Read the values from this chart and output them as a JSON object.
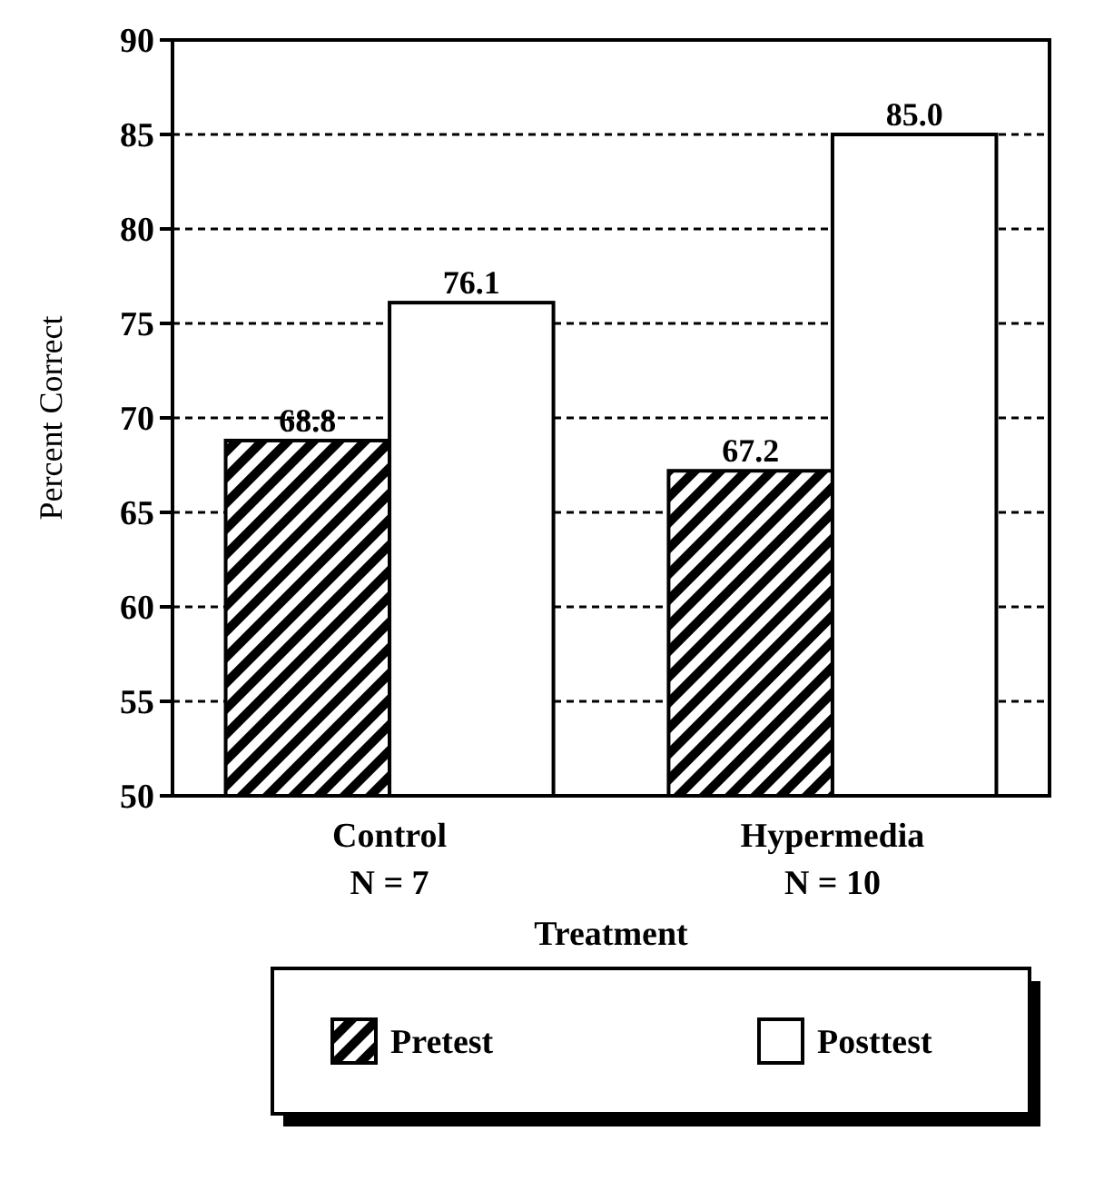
{
  "chart_data": {
    "type": "bar",
    "xlabel": "Treatment",
    "ylabel": "Percent Correct",
    "categories": [
      "Control\nN = 7",
      "Hypermedia\nN = 10"
    ],
    "series": [
      {
        "name": "Pretest",
        "color": "#000000",
        "values": [
          68.8,
          67.2
        ],
        "value_labels": [
          "68.8",
          "67.2"
        ]
      },
      {
        "name": "Posttest",
        "color": "#ffffff",
        "values": [
          76.1,
          85.0
        ],
        "value_labels": [
          "76.1",
          "85.0"
        ]
      }
    ],
    "ylim": [
      50,
      90
    ],
    "yticks": [
      50,
      55,
      60,
      65,
      70,
      75,
      80,
      85,
      90
    ],
    "grid": "y",
    "legend": "bottom"
  }
}
